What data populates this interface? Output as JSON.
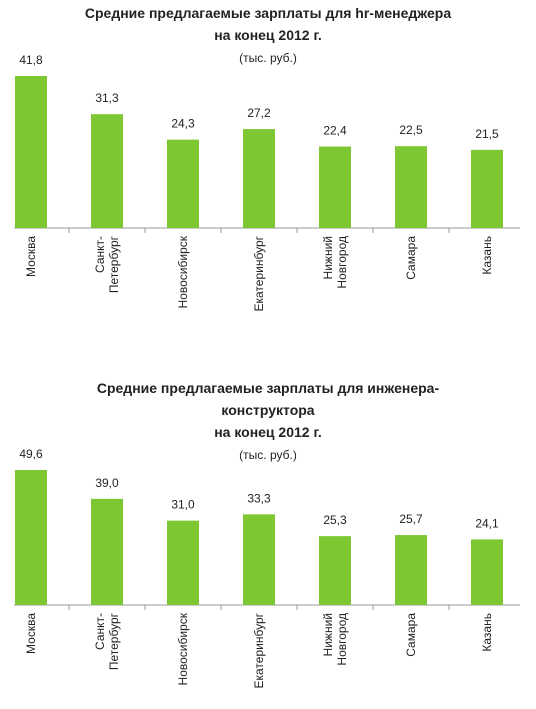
{
  "chart_data": [
    {
      "type": "bar",
      "title": "Средние предлагаемые зарплаты для hr-менеджера\nна конец 2012 г.",
      "subtitle": "(тыс. руб.)",
      "categories": [
        "Москва",
        "Санкт-\nПетербург",
        "Новосибирск",
        "Екатеринбург",
        "Нижний\nНовгород",
        "Самара",
        "Казань"
      ],
      "values": [
        41.8,
        31.3,
        24.3,
        27.2,
        22.4,
        22.5,
        21.5
      ],
      "value_labels": [
        "41,8",
        "31,3",
        "24,3",
        "27,2",
        "22,4",
        "22,5",
        "21,5"
      ],
      "color": "#7dc832"
    },
    {
      "type": "bar",
      "title": "Средние предлагаемые зарплаты для инженера-\nконструктора\nна конец 2012 г.",
      "subtitle": "(тыс. руб.)",
      "categories": [
        "Москва",
        "Санкт-\nПетербург",
        "Новосибирск",
        "Екатеринбург",
        "Нижний\nНовгород",
        "Самара",
        "Казань"
      ],
      "values": [
        49.6,
        39.0,
        31.0,
        33.3,
        25.3,
        25.7,
        24.1
      ],
      "value_labels": [
        "49,6",
        "39,0",
        "31,0",
        "33,3",
        "25,3",
        "25,7",
        "24,1"
      ],
      "color": "#7dc832"
    }
  ]
}
